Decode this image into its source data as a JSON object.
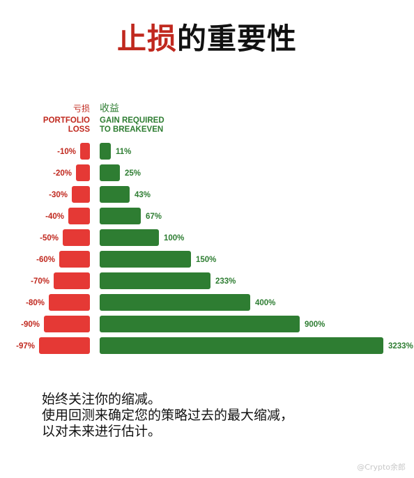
{
  "title": {
    "part1": "止损",
    "part2": "的重要性"
  },
  "headers": {
    "loss_cn": "亏损",
    "loss_en": "PORTFOLIO\nLOSS",
    "gain_cn": "收益",
    "gain_en": "GAIN REQUIRED\nTO BREAKEVEN"
  },
  "colors": {
    "loss": "#e53935",
    "gain": "#2e7d32",
    "loss_text": "#c0281e",
    "gain_text": "#2e7d32"
  },
  "chart_data": {
    "type": "bar",
    "orientation": "horizontal-diverging",
    "categories": [
      "-10%",
      "-20%",
      "-30%",
      "-40%",
      "-50%",
      "-60%",
      "-70%",
      "-80%",
      "-90%",
      "-97%"
    ],
    "series": [
      {
        "name": "PORTFOLIO LOSS",
        "values": [
          10,
          20,
          30,
          40,
          50,
          60,
          70,
          80,
          90,
          97
        ],
        "labels": [
          "-10%",
          "-20%",
          "-30%",
          "-40%",
          "-50%",
          "-60%",
          "-70%",
          "-80%",
          "-90%",
          "-97%"
        ]
      },
      {
        "name": "GAIN REQUIRED TO BREAKEVEN",
        "values": [
          11,
          25,
          43,
          67,
          100,
          150,
          233,
          400,
          900,
          3233
        ],
        "labels": [
          "11%",
          "25%",
          "43%",
          "67%",
          "100%",
          "150%",
          "233%",
          "400%",
          "900%",
          "3233%"
        ]
      }
    ],
    "grid": false,
    "legend": "none"
  },
  "footer": {
    "line1": "始终关注你的缩减。",
    "line2": "使用回测来确定您的策略过去的最大缩减，",
    "line3": "以对未来进行估计。"
  },
  "watermark": "@Crypto余郎"
}
